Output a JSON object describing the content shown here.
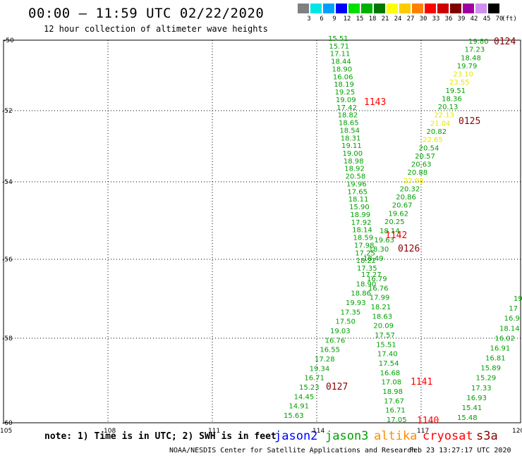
{
  "header": {
    "title": "00:00 – 11:59 UTC 02/22/2020",
    "subtitle": "12 hour collection of altimeter wave heights"
  },
  "legend": {
    "unit": "(ft)",
    "items": [
      {
        "label": "3",
        "color": "#808080"
      },
      {
        "label": "6",
        "color": "#00e5e5"
      },
      {
        "label": "9",
        "color": "#00a0ff"
      },
      {
        "label": "12",
        "color": "#0000ff"
      },
      {
        "label": "15",
        "color": "#00e000"
      },
      {
        "label": "18",
        "color": "#00b000"
      },
      {
        "label": "21",
        "color": "#007800"
      },
      {
        "label": "24",
        "color": "#ffff00"
      },
      {
        "label": "27",
        "color": "#ffcc00"
      },
      {
        "label": "30",
        "color": "#ff8000"
      },
      {
        "label": "33",
        "color": "#ff0000"
      },
      {
        "label": "36",
        "color": "#cc0000"
      },
      {
        "label": "39",
        "color": "#800000"
      },
      {
        "label": "42",
        "color": "#a000a0"
      },
      {
        "label": "45",
        "color": "#d090f0"
      },
      {
        "label": "70",
        "color": "#000000"
      }
    ]
  },
  "map": {
    "lat_labels": [
      "-50",
      "-52",
      "-54",
      "-56",
      "-58",
      "-60"
    ],
    "lon_labels": [
      "105",
      "108",
      "111",
      "114",
      "117",
      "120"
    ]
  },
  "track_times": [
    {
      "label": "0124",
      "color": "#8b0000"
    },
    {
      "label": "1143",
      "color": "#ff0000"
    },
    {
      "label": "0125",
      "color": "#8b0000"
    },
    {
      "label": "1142",
      "color": "#ff0000"
    },
    {
      "label": "0126",
      "color": "#8b0000"
    },
    {
      "label": "0127",
      "color": "#8b0000"
    },
    {
      "label": "1141",
      "color": "#ff0000"
    },
    {
      "label": "1140",
      "color": "#ff0000"
    }
  ],
  "tracks": {
    "track_1143": [
      "15.51",
      "15.71",
      "17.11",
      "18.44",
      "18.90",
      "16.06",
      "18.19",
      "19.25",
      "19.09",
      "17.42",
      "18.82",
      "18.65",
      "18.54",
      "18.31",
      "19.11",
      "19.00",
      "18.98",
      "18.92",
      "20.58",
      "19.96",
      "17.65",
      "18.11",
      "15.90",
      "18.99",
      "17.92",
      "18.14",
      "18.59",
      "17.98",
      "17.25",
      "18.22",
      "17.35"
    ],
    "track_1142": [
      "18.14",
      "19.63",
      "18.30",
      "18.49"
    ],
    "track_0124_0126": [
      "19.80",
      "17.23",
      "18.48",
      "19.79",
      "23.10",
      "23.55",
      "19.51",
      "18.36",
      "20.13",
      "22.13",
      "21.04",
      "20.82",
      "22.65",
      "20.54",
      "20.57",
      "20.63",
      "20.88",
      "22.98",
      "20.32",
      "20.86",
      "20.67",
      "19.62",
      "20.25"
    ],
    "track_0127": [
      "17.27",
      "18.90",
      "18.86",
      "19.93",
      "17.35",
      "17.50",
      "19.03",
      "16.76",
      "16.55",
      "17.28",
      "19.34",
      "16.71",
      "15.23",
      "14.45",
      "14.91",
      "15.63"
    ],
    "track_1141": [
      "16.79",
      "16.76",
      "17.99",
      "18.21",
      "18.63",
      "20.09",
      "17.57",
      "15.51",
      "17.40",
      "17.54",
      "16.68",
      "17.08",
      "18.98",
      "17.67",
      "16.71",
      "17.05"
    ],
    "track_1140": [
      "19",
      "17",
      "16.9",
      "18.14",
      "16.02",
      "16.91",
      "16.81",
      "15.89",
      "15.29",
      "17.33",
      "16.93",
      "15.41",
      "15.48"
    ]
  },
  "footer": {
    "note": "note: 1) Time is in UTC; 2) SWH is in feet",
    "satellites": [
      {
        "name": "jason2",
        "color": "#0000ff"
      },
      {
        "name": "jason3",
        "color": "#00a000"
      },
      {
        "name": "altika",
        "color": "#ff8c00"
      },
      {
        "name": "cryosat",
        "color": "#ff0000"
      },
      {
        "name": "s3a",
        "color": "#8b0000"
      }
    ],
    "credit": "NOAA/NESDIS Center for Satellite Applications and Research",
    "timestamp": "Feb 23 13:27:17 UTC 2020"
  }
}
